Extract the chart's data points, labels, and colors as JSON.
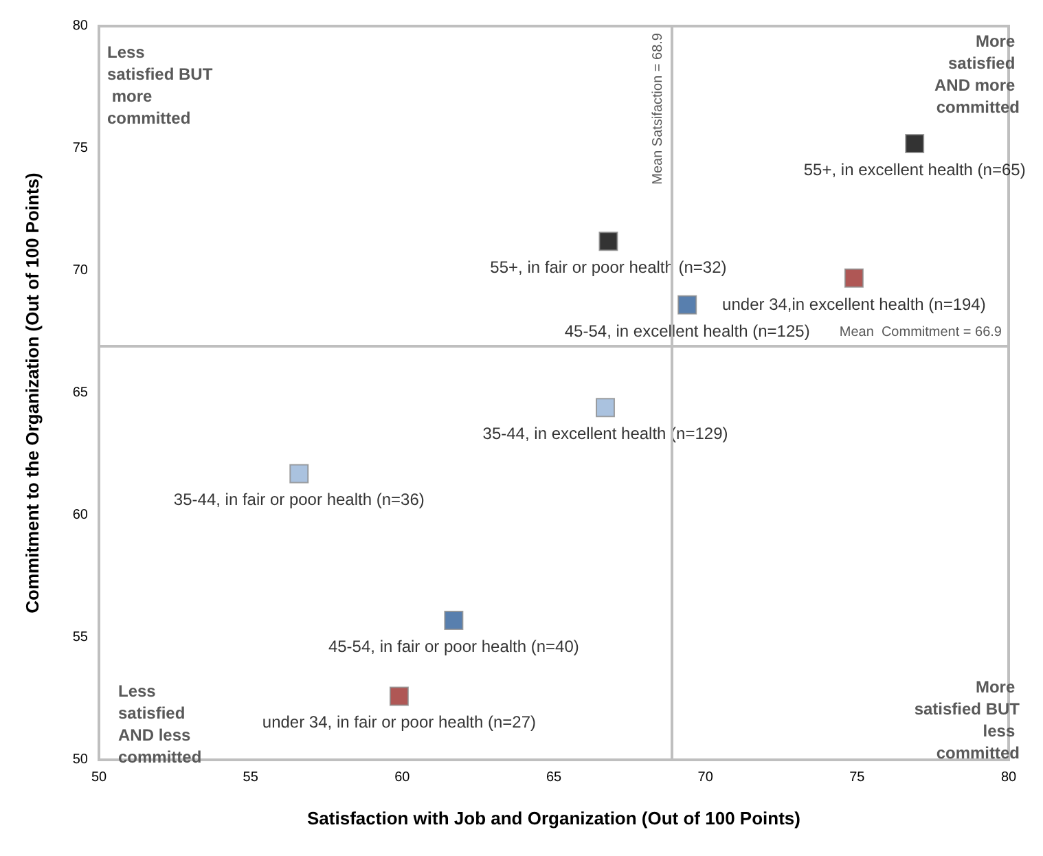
{
  "chart_data": {
    "type": "scatter",
    "xlabel": "Satisfaction with Job and Organization (Out of 100 Points)",
    "ylabel": "Commitment to the Organization (Out of 100 Points)",
    "xlim": [
      50,
      80
    ],
    "xticks": [
      50,
      55,
      60,
      65,
      70,
      75,
      80
    ],
    "ylim": [
      50,
      80
    ],
    "yticks": [
      50,
      55,
      60,
      65,
      70,
      75,
      80
    ],
    "marker": "square",
    "legend": false,
    "series": [
      {
        "name": "55+, in excellent health (n=65)",
        "color": "#000000",
        "x": [
          76.9
        ],
        "values": [
          75.2
        ]
      },
      {
        "name": "55+, in fair or poor health (n=32)",
        "color": "#000000",
        "x": [
          66.8
        ],
        "values": [
          71.2
        ]
      },
      {
        "name": "under 34,in excellent health (n=194)",
        "color": "#9b2d2a",
        "x": [
          74.9
        ],
        "values": [
          69.7
        ]
      },
      {
        "name": "45-54, in excellent health (n=125)",
        "color": "#2e5f9a",
        "x": [
          69.4
        ],
        "values": [
          68.6
        ]
      },
      {
        "name": "35-44, in excellent health (n=129)",
        "color": "#95b3d7",
        "x": [
          66.7
        ],
        "values": [
          64.4
        ]
      },
      {
        "name": "35-44, in fair or poor health (n=36)",
        "color": "#95b3d7",
        "x": [
          56.6
        ],
        "values": [
          61.7
        ]
      },
      {
        "name": "45-54, in fair or poor health (n=40)",
        "color": "#2e5f9a",
        "x": [
          61.7
        ],
        "values": [
          55.7
        ]
      },
      {
        "name": "under 34, in fair or poor health (n=27)",
        "color": "#9b2d2a",
        "x": [
          59.9
        ],
        "values": [
          52.6
        ]
      }
    ],
    "ref_lines": [
      {
        "axis": "x",
        "value": 68.9,
        "label": "Mean Satsifaction = 68.9",
        "color": "#bfbfbf"
      },
      {
        "axis": "y",
        "value": 66.9,
        "label": "Mean  Commitment = 66.9",
        "color": "#bfbfbf"
      }
    ],
    "annotations": [
      "Less satisfied BUT more committed",
      "More satisfied AND more committed",
      "Less satisfied AND less committed",
      "More satisfied BUT less committed"
    ]
  }
}
